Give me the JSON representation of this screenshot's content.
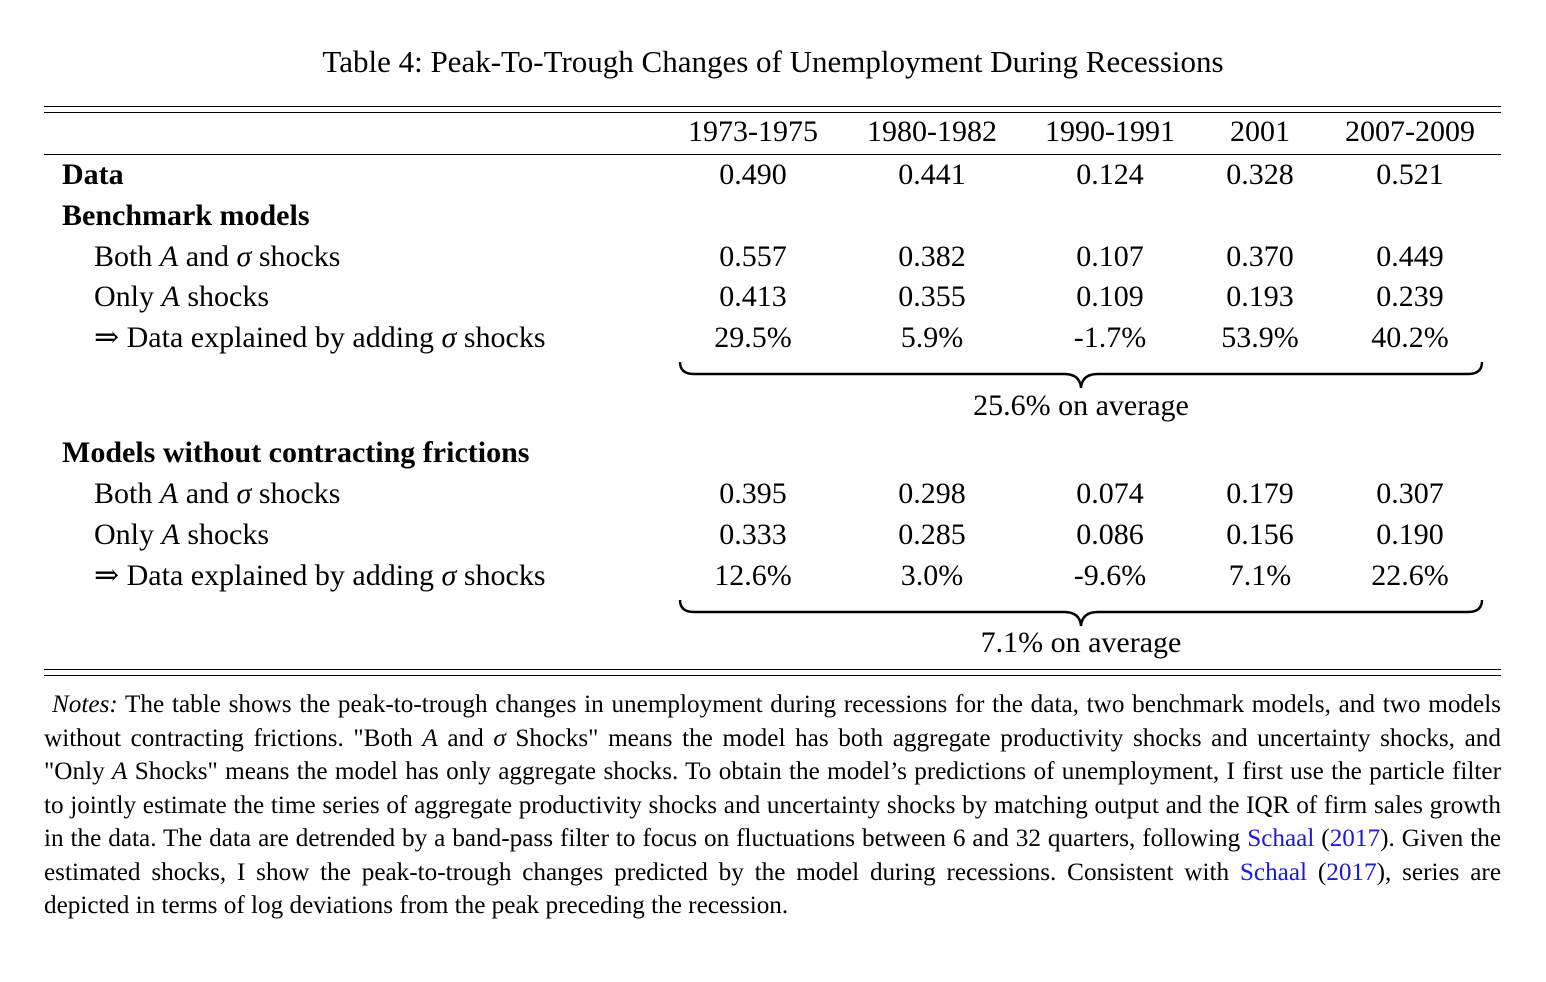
{
  "caption": "Table 4: Peak-To-Trough Changes of Unemployment During Recessions",
  "columns": [
    "1973-1975",
    "1980-1982",
    "1990-1991",
    "2001",
    "2007-2009"
  ],
  "rows": {
    "data": {
      "label": "Data",
      "values": [
        "0.490",
        "0.441",
        "0.124",
        "0.328",
        "0.521"
      ]
    },
    "benchmark_header": "Benchmark models",
    "benchmark_both": {
      "label_pre": "Both ",
      "label_a": "A",
      "label_mid": " and ",
      "label_sigma": "σ",
      "label_post": " shocks",
      "values": [
        "0.557",
        "0.382",
        "0.107",
        "0.370",
        "0.449"
      ]
    },
    "benchmark_only": {
      "label_pre": "Only ",
      "label_a": "A",
      "label_post": " shocks",
      "values": [
        "0.413",
        "0.355",
        "0.109",
        "0.193",
        "0.239"
      ]
    },
    "benchmark_explained": {
      "label_pre": "⇒ Data explained by adding ",
      "label_sigma": "σ",
      "label_post": " shocks",
      "values": [
        "29.5%",
        "5.9%",
        "-1.7%",
        "53.9%",
        "40.2%"
      ]
    },
    "benchmark_average": "25.6% on average",
    "nofriction_header": "Models without contracting frictions",
    "nofriction_both": {
      "label_pre": "Both ",
      "label_a": "A",
      "label_mid": " and ",
      "label_sigma": "σ",
      "label_post": " shocks",
      "values": [
        "0.395",
        "0.298",
        "0.074",
        "0.179",
        "0.307"
      ]
    },
    "nofriction_only": {
      "label_pre": "Only ",
      "label_a": "A",
      "label_post": " shocks",
      "values": [
        "0.333",
        "0.285",
        "0.086",
        "0.156",
        "0.190"
      ]
    },
    "nofriction_explained": {
      "label_pre": "⇒ Data explained by adding ",
      "label_sigma": "σ",
      "label_post": " shocks",
      "values": [
        "12.6%",
        "3.0%",
        "-9.6%",
        "7.1%",
        "22.6%"
      ]
    },
    "nofriction_average": "7.1% on average"
  },
  "notes": {
    "label": "Notes:",
    "p1": " The table shows the peak-to-trough changes in unemployment during recessions for the data, two benchmark models, and two models without contracting frictions. \"Both ",
    "a1": "A",
    "p2": " and ",
    "s1": "σ",
    "p3": " Shocks\" means the model has both aggregate productivity shocks and uncertainty shocks, and \"Only ",
    "a2": "A",
    "p4": " Shocks\" means the model has only aggregate shocks. To obtain the model’s predictions of unemployment, I first use the particle filter to jointly estimate the time series of aggregate productivity shocks and uncertainty shocks by matching output and the IQR of firm sales growth in the data. The data are detrended by a band-pass filter to focus on fluctuations between 6 and 32 quarters, following ",
    "cite1_author": "Schaal",
    "cite1_open": " (",
    "cite1_year": "2017",
    "cite1_close": ").",
    "p5": " Given the estimated shocks, I show the peak-to-trough changes predicted by the model during recessions. Consistent with ",
    "cite2_author": "Schaal",
    "cite2_open": " (",
    "cite2_year": "2017",
    "cite2_close": "),",
    "p6": " series are depicted in terms of log deviations from the peak preceding the recession."
  }
}
